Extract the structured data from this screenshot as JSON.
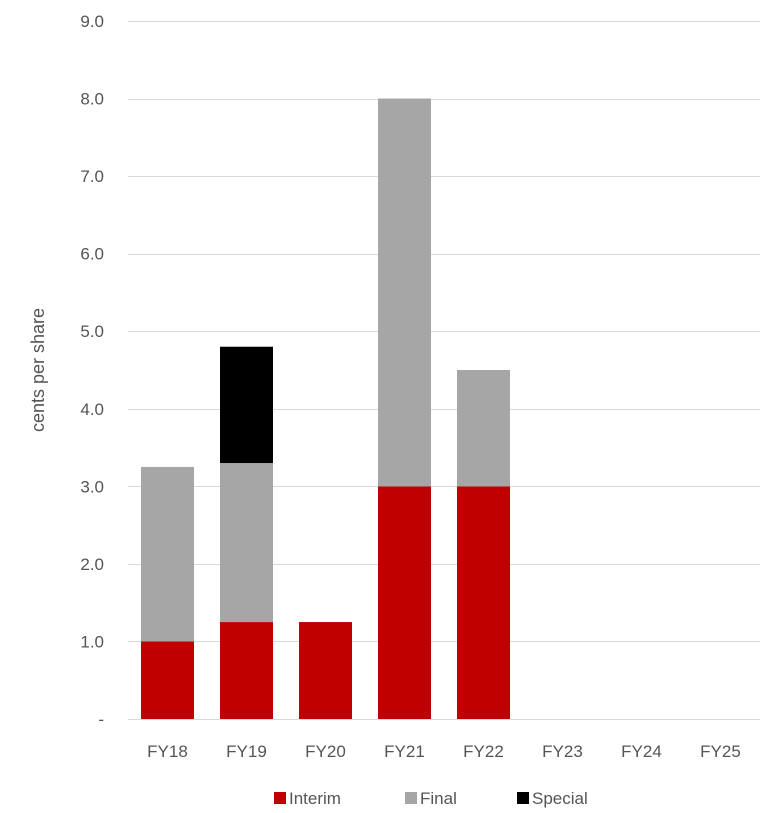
{
  "chart_data": {
    "type": "bar",
    "stacked": true,
    "categories": [
      "FY18",
      "FY19",
      "FY20",
      "FY21",
      "FY22",
      "FY23",
      "FY24",
      "FY25"
    ],
    "series": [
      {
        "name": "Interim",
        "color": "#c00000",
        "values": [
          1.0,
          1.25,
          1.25,
          3.0,
          3.0,
          0,
          0,
          0
        ]
      },
      {
        "name": "Final",
        "color": "#a6a6a6",
        "values": [
          2.25,
          2.05,
          0,
          5.0,
          1.5,
          0,
          0,
          0
        ]
      },
      {
        "name": "Special",
        "color": "#000000",
        "values": [
          0,
          1.5,
          0,
          0,
          0,
          0,
          0,
          0
        ]
      }
    ],
    "ylabel": "cents per share",
    "xlabel": "",
    "title": "",
    "ylim": [
      0,
      9
    ],
    "yticks": [
      {
        "value": 0,
        "label": "-"
      },
      {
        "value": 1,
        "label": "1.0"
      },
      {
        "value": 2,
        "label": "2.0"
      },
      {
        "value": 3,
        "label": "3.0"
      },
      {
        "value": 4,
        "label": "4.0"
      },
      {
        "value": 5,
        "label": "5.0"
      },
      {
        "value": 6,
        "label": "6.0"
      },
      {
        "value": 7,
        "label": "7.0"
      },
      {
        "value": 8,
        "label": "8.0"
      },
      {
        "value": 9,
        "label": "9.0"
      }
    ],
    "grid": true,
    "gridline_color": "#d9d9d9",
    "legend_position": "bottom"
  }
}
